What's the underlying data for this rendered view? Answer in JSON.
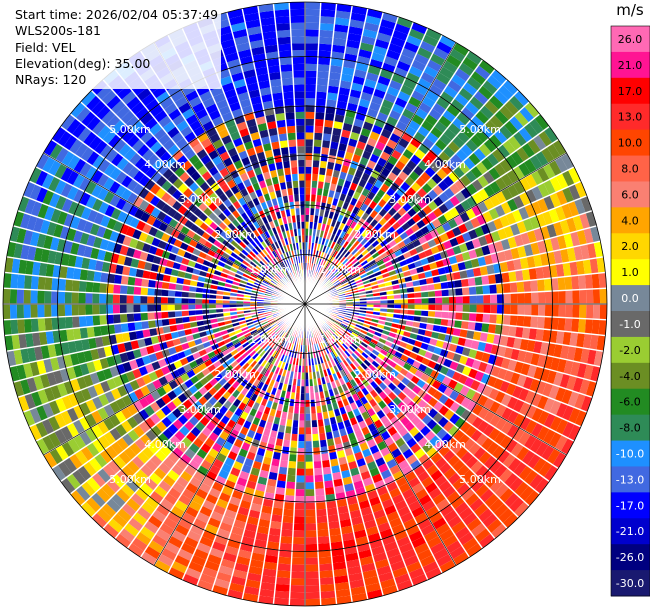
{
  "info": {
    "start_time": "Start time: 2026/02/04 05:37:49",
    "instrument": "WLS200s-181",
    "field": "Field: VEL",
    "elevation": "Elevation(deg): 35.00",
    "nrays": "NRays: 120"
  },
  "chart_data": {
    "type": "heatmap",
    "projection": "polar PPI scan",
    "field": "VEL",
    "elevation_deg": 35.0,
    "n_rays": 120,
    "range_rings_km": [
      1.0,
      2.0,
      3.0,
      4.0,
      5.0
    ],
    "range_ring_labels": [
      "1.00km",
      "2.00km",
      "3.00km",
      "4.00km",
      "5.00km"
    ],
    "max_range_km": 6.1,
    "sector_trends": [
      {
        "sector": "north",
        "typical_velocity_ms": -14
      },
      {
        "sector": "northeast",
        "typical_velocity_ms": -7
      },
      {
        "sector": "east",
        "typical_velocity_ms": 9
      },
      {
        "sector": "southeast",
        "typical_velocity_ms": 13
      },
      {
        "sector": "south",
        "typical_velocity_ms": 15
      },
      {
        "sector": "southwest",
        "typical_velocity_ms": 4
      },
      {
        "sector": "west",
        "typical_velocity_ms": -6
      },
      {
        "sector": "northwest",
        "typical_velocity_ms": -13
      }
    ],
    "colorbar": {
      "unit": "m/s",
      "tick_labels": [
        "26.0",
        "21.0",
        "17.0",
        "13.0",
        "10.0",
        "8.0",
        "6.0",
        "4.0",
        "2.0",
        "1.0",
        "0.0",
        "-1.0",
        "-2.0",
        "-4.0",
        "-6.0",
        "-8.0",
        "-10.0",
        "-13.0",
        "-17.0",
        "-21.0",
        "-26.0",
        "-30.0"
      ],
      "boundaries": [
        30,
        26,
        21,
        17,
        13,
        10,
        8,
        6,
        4,
        2,
        1,
        0,
        -1,
        -2,
        -4,
        -6,
        -8,
        -10,
        -13,
        -17,
        -21,
        -26,
        -30
      ],
      "colors": [
        "#ff69b4",
        "#ff1493",
        "#ff0000",
        "#ff2a2a",
        "#ff4500",
        "#ff6347",
        "#fa8072",
        "#ffa500",
        "#ffd700",
        "#ffff00",
        "#778899",
        "#696969",
        "#9acd32",
        "#6b8e23",
        "#228b22",
        "#2e8b57",
        "#1e90ff",
        "#4169e1",
        "#0000ff",
        "#0000cd",
        "#000080",
        "#191970"
      ]
    }
  }
}
